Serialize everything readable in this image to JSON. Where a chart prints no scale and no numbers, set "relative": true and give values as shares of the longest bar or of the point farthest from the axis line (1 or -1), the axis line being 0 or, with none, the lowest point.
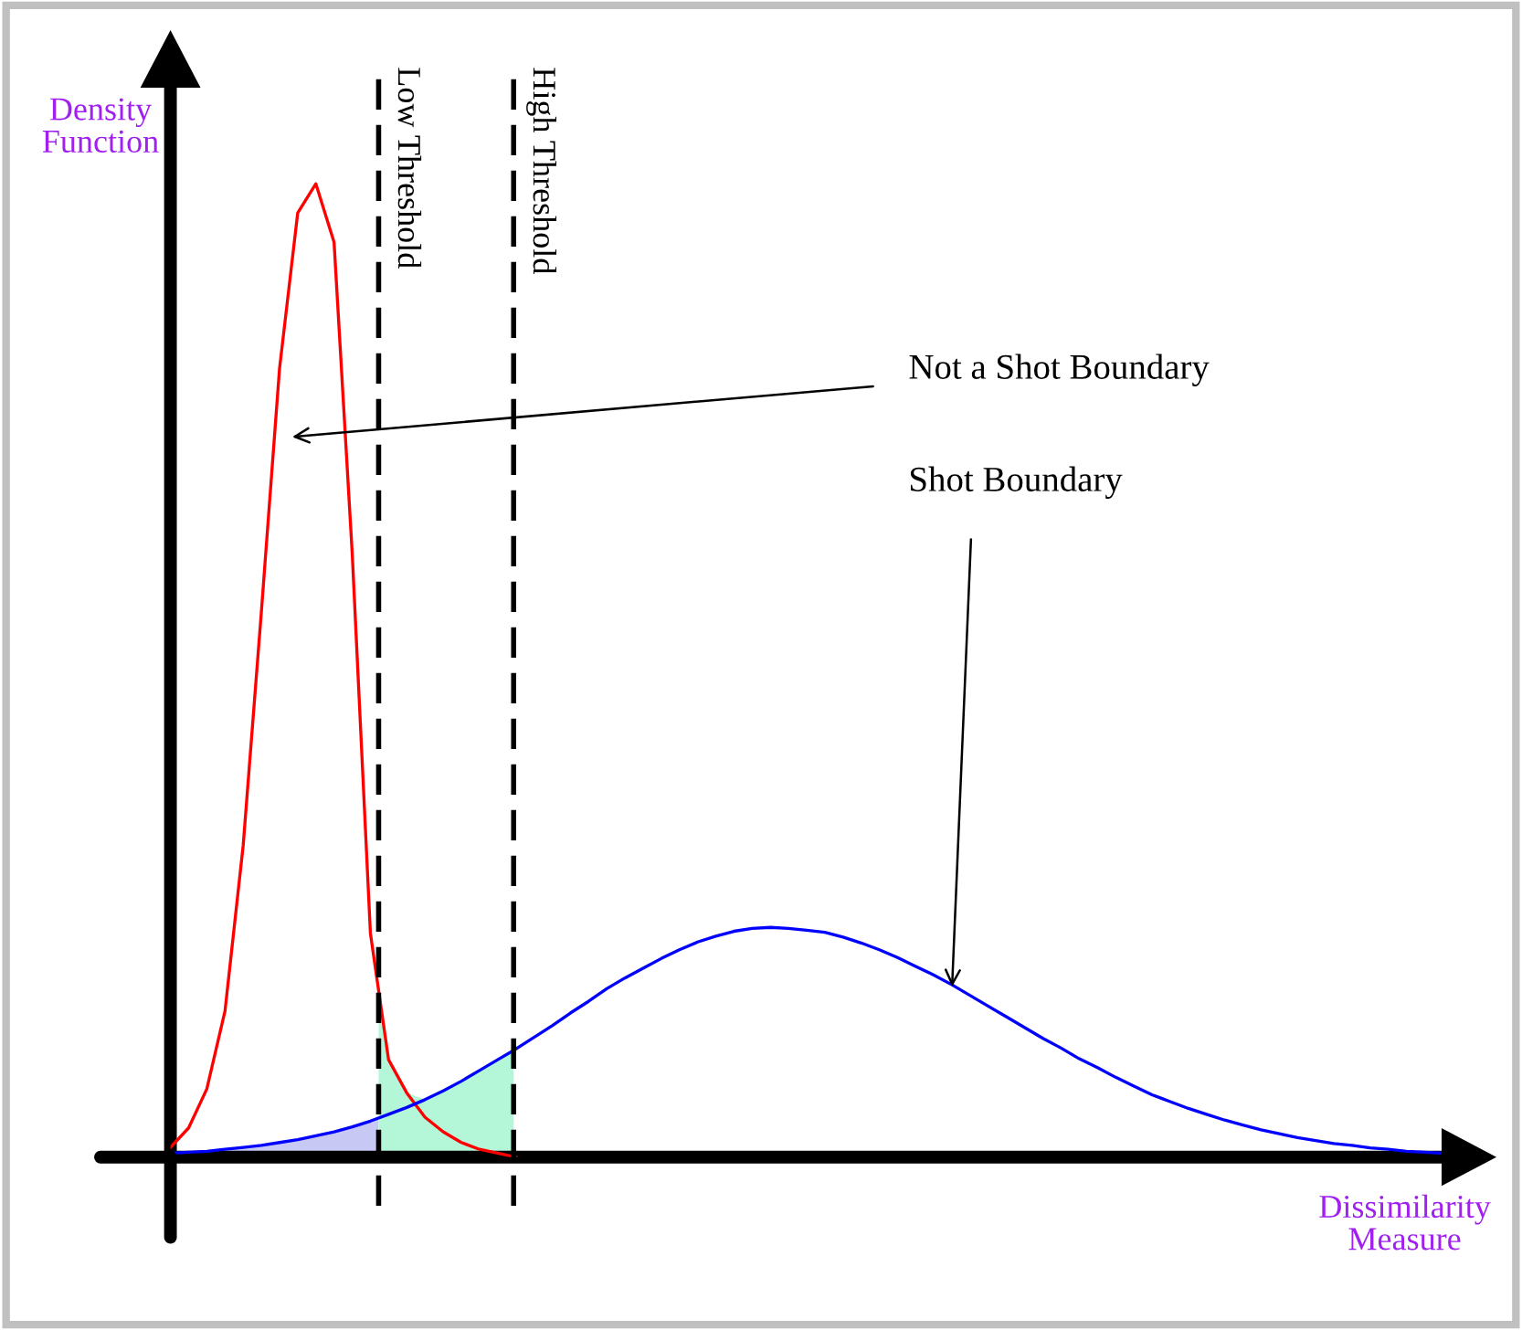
{
  "chart_data": {
    "type": "line",
    "relative": true,
    "xlabel": "Dissimilarity\nMeasure",
    "ylabel": "Density\nFunction",
    "categories": [
      null,
      null,
      null,
      null,
      null,
      null,
      null,
      null,
      null,
      null,
      null,
      null,
      null,
      null,
      null,
      null,
      null,
      null,
      null,
      null,
      null,
      null,
      null,
      null,
      null,
      null,
      null,
      null,
      null,
      null,
      null,
      null,
      null,
      null,
      null,
      null,
      null,
      null,
      null,
      null,
      null,
      null,
      null,
      null,
      null,
      null,
      null,
      null,
      null,
      null,
      null,
      null,
      null,
      null,
      null,
      null,
      null,
      null,
      null,
      null,
      null,
      null,
      null,
      null,
      null,
      null,
      null,
      null,
      null,
      null,
      null
    ],
    "series": [
      {
        "color": "#ff0000",
        "values": [
          0.01,
          0.03,
          0.07,
          0.15,
          0.32,
          0.56,
          0.81,
          0.97,
          1,
          0.94,
          0.62,
          0.23,
          0.1,
          0.066,
          0.041,
          0.026,
          0.015,
          0.008,
          0.004,
          0,
          null,
          null,
          null,
          null,
          null,
          null,
          null,
          null,
          null,
          null,
          null,
          null,
          null,
          null,
          null,
          null,
          null,
          null,
          null,
          null,
          null,
          null,
          null,
          null,
          null,
          null,
          null,
          null,
          null,
          null,
          null,
          null,
          null,
          null,
          null,
          null,
          null,
          null,
          null,
          null,
          null,
          null,
          null,
          null,
          null,
          null,
          null,
          null,
          null,
          null,
          null
        ]
      },
      {
        "color": "#0000ff",
        "values": [
          0.004,
          0.005,
          0.006,
          0.008,
          0.01,
          0.012,
          0.015,
          0.018,
          0.022,
          0.026,
          0.031,
          0.037,
          0.044,
          0.051,
          0.059,
          0.068,
          0.078,
          0.089,
          0.1,
          0.111,
          0.123,
          0.135,
          0.148,
          0.16,
          0.173,
          0.184,
          0.194,
          0.204,
          0.213,
          0.221,
          0.227,
          0.232,
          0.235,
          0.236,
          0.235,
          0.233,
          0.231,
          0.226,
          0.22,
          0.213,
          0.205,
          0.196,
          0.187,
          0.177,
          0.166,
          0.155,
          0.144,
          0.133,
          0.122,
          0.112,
          0.101,
          0.092,
          0.082,
          0.073,
          0.064,
          0.057,
          0.05,
          0.044,
          0.038,
          0.033,
          0.028,
          0.024,
          0.02,
          0.017,
          0.014,
          0.012,
          0.0095,
          0.008,
          0.006,
          0.005,
          0.004
        ]
      }
    ],
    "annotations": [
      "Low Threshold",
      "High Threshold",
      "Not a Shot Boundary",
      "Shot Boundary"
    ],
    "legend": false,
    "marker": "none",
    "line_style": "solid"
  }
}
